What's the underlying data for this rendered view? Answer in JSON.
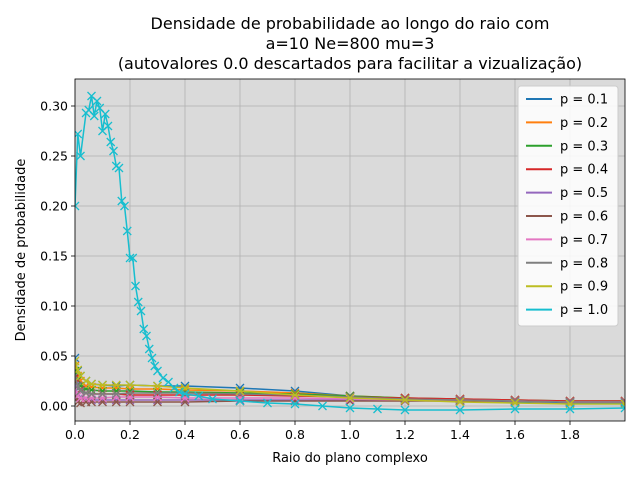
{
  "chart_data": {
    "type": "line",
    "title_lines": [
      "Densidade de probabilidade ao longo do raio com",
      "a=10 Ne=800 mu=3",
      "(autovalores 0.0 descartados para facilitar a vizualização)"
    ],
    "xlabel": "Raio do plano complexo",
    "ylabel": "Densidade de probabilidade",
    "xlim": [
      0,
      2.0
    ],
    "ylim": [
      -0.015,
      0.327
    ],
    "x_ticks": [
      0.0,
      0.2,
      0.4,
      0.6,
      0.8,
      1.0,
      1.2,
      1.4,
      1.6,
      1.8
    ],
    "x_tick_labels": [
      "0.0",
      "0.2",
      "0.4",
      "0.6",
      "0.8",
      "1.0",
      "1.2",
      "1.4",
      "1.6",
      "1.8"
    ],
    "y_ticks": [
      0.0,
      0.05,
      0.1,
      0.15,
      0.2,
      0.25,
      0.3
    ],
    "y_tick_labels": [
      "0.00",
      "0.05",
      "0.10",
      "0.15",
      "0.20",
      "0.25",
      "0.30"
    ],
    "grid": true,
    "marker": "x",
    "legend_position": "top-right",
    "series": [
      {
        "name": "p = 0.1",
        "color": "#1f77b4",
        "x": [
          0,
          0.01,
          0.02,
          0.04,
          0.06,
          0.1,
          0.15,
          0.2,
          0.3,
          0.4,
          0.6,
          0.8,
          1.0,
          1.2,
          1.4,
          1.6,
          1.8,
          2.0
        ],
        "y": [
          0.048,
          0.035,
          0.03,
          0.025,
          0.022,
          0.021,
          0.02,
          0.021,
          0.02,
          0.02,
          0.018,
          0.015,
          0.01,
          0.007,
          0.005,
          0.004,
          0.003,
          0.003
        ]
      },
      {
        "name": "p = 0.2",
        "color": "#ff7f0e",
        "x": [
          0,
          0.01,
          0.02,
          0.04,
          0.06,
          0.1,
          0.15,
          0.2,
          0.3,
          0.4,
          0.6,
          0.8,
          1.0,
          1.2,
          1.4,
          1.6,
          1.8,
          2.0
        ],
        "y": [
          0.04,
          0.03,
          0.025,
          0.02,
          0.019,
          0.018,
          0.018,
          0.017,
          0.017,
          0.016,
          0.015,
          0.013,
          0.01,
          0.008,
          0.006,
          0.005,
          0.004,
          0.004
        ]
      },
      {
        "name": "p = 0.3",
        "color": "#2ca02c",
        "x": [
          0,
          0.01,
          0.02,
          0.04,
          0.06,
          0.1,
          0.15,
          0.2,
          0.3,
          0.4,
          0.6,
          0.8,
          1.0,
          1.2,
          1.4,
          1.6,
          1.8,
          2.0
        ],
        "y": [
          0.035,
          0.026,
          0.02,
          0.017,
          0.016,
          0.015,
          0.015,
          0.015,
          0.014,
          0.014,
          0.013,
          0.012,
          0.01,
          0.008,
          0.007,
          0.006,
          0.005,
          0.005
        ]
      },
      {
        "name": "p = 0.4",
        "color": "#d62728",
        "x": [
          0,
          0.01,
          0.02,
          0.04,
          0.06,
          0.1,
          0.15,
          0.2,
          0.3,
          0.4,
          0.6,
          0.8,
          1.0,
          1.2,
          1.4,
          1.6,
          1.8,
          2.0
        ],
        "y": [
          0.028,
          0.02,
          0.016,
          0.013,
          0.012,
          0.012,
          0.012,
          0.011,
          0.011,
          0.011,
          0.011,
          0.01,
          0.009,
          0.008,
          0.007,
          0.006,
          0.005,
          0.005
        ]
      },
      {
        "name": "p = 0.5",
        "color": "#9467bd",
        "x": [
          0,
          0.01,
          0.02,
          0.04,
          0.06,
          0.1,
          0.15,
          0.2,
          0.3,
          0.4,
          0.6,
          0.8,
          1.0,
          1.2,
          1.4,
          1.6,
          1.8,
          2.0
        ],
        "y": [
          0.02,
          0.012,
          0.009,
          0.007,
          0.006,
          0.006,
          0.006,
          0.006,
          0.006,
          0.006,
          0.006,
          0.006,
          0.006,
          0.006,
          0.005,
          0.005,
          0.004,
          0.004
        ]
      },
      {
        "name": "p = 0.6",
        "color": "#8c564b",
        "x": [
          0,
          0.01,
          0.02,
          0.04,
          0.06,
          0.1,
          0.15,
          0.2,
          0.3,
          0.4,
          0.6,
          0.8,
          1.0,
          1.2,
          1.4,
          1.6,
          1.8,
          2.0
        ],
        "y": [
          0.01,
          0.004,
          0.003,
          0.004,
          0.004,
          0.004,
          0.004,
          0.004,
          0.004,
          0.004,
          0.005,
          0.005,
          0.005,
          0.005,
          0.005,
          0.005,
          0.004,
          0.004
        ]
      },
      {
        "name": "p = 0.7",
        "color": "#e377c2",
        "x": [
          0,
          0.01,
          0.02,
          0.04,
          0.06,
          0.1,
          0.15,
          0.2,
          0.3,
          0.4,
          0.6,
          0.8,
          1.0,
          1.2,
          1.4,
          1.6,
          1.8,
          2.0
        ],
        "y": [
          0.016,
          0.01,
          0.008,
          0.008,
          0.008,
          0.008,
          0.009,
          0.009,
          0.009,
          0.008,
          0.008,
          0.008,
          0.007,
          0.006,
          0.006,
          0.005,
          0.004,
          0.004
        ]
      },
      {
        "name": "p = 0.8",
        "color": "#7f7f7f",
        "x": [
          0,
          0.01,
          0.02,
          0.04,
          0.06,
          0.1,
          0.15,
          0.2,
          0.3,
          0.4,
          0.6,
          0.8,
          1.0,
          1.2,
          1.4,
          1.6,
          1.8,
          2.0
        ],
        "y": [
          0.03,
          0.02,
          0.015,
          0.013,
          0.012,
          0.012,
          0.012,
          0.013,
          0.013,
          0.013,
          0.012,
          0.011,
          0.009,
          0.007,
          0.006,
          0.005,
          0.004,
          0.004
        ]
      },
      {
        "name": "p = 0.9",
        "color": "#bcbd22",
        "x": [
          0,
          0.01,
          0.02,
          0.04,
          0.06,
          0.1,
          0.15,
          0.2,
          0.3,
          0.4,
          0.6,
          0.8,
          1.0,
          1.2,
          1.4,
          1.6,
          1.8,
          2.0
        ],
        "y": [
          0.045,
          0.036,
          0.03,
          0.025,
          0.022,
          0.021,
          0.021,
          0.021,
          0.02,
          0.018,
          0.015,
          0.011,
          0.008,
          0.006,
          0.004,
          0.003,
          0.002,
          0.002
        ]
      },
      {
        "name": "p = 1.0",
        "color": "#17becf",
        "x": [
          0,
          0.01,
          0.02,
          0.04,
          0.05,
          0.06,
          0.07,
          0.08,
          0.09,
          0.1,
          0.11,
          0.12,
          0.13,
          0.14,
          0.15,
          0.16,
          0.17,
          0.18,
          0.19,
          0.2,
          0.21,
          0.22,
          0.23,
          0.24,
          0.25,
          0.26,
          0.27,
          0.28,
          0.29,
          0.3,
          0.32,
          0.34,
          0.36,
          0.38,
          0.4,
          0.45,
          0.5,
          0.6,
          0.7,
          0.8,
          0.9,
          1.0,
          1.1,
          1.2,
          1.4,
          1.6,
          1.8,
          2.0
        ],
        "y": [
          0.2,
          0.272,
          0.25,
          0.293,
          0.296,
          0.31,
          0.29,
          0.305,
          0.298,
          0.275,
          0.292,
          0.28,
          0.264,
          0.255,
          0.24,
          0.238,
          0.205,
          0.2,
          0.175,
          0.148,
          0.148,
          0.12,
          0.104,
          0.095,
          0.077,
          0.07,
          0.057,
          0.048,
          0.04,
          0.035,
          0.028,
          0.024,
          0.018,
          0.014,
          0.012,
          0.01,
          0.007,
          0.005,
          0.003,
          0.002,
          0.0,
          -0.002,
          -0.003,
          -0.004,
          -0.004,
          -0.003,
          -0.003,
          -0.002
        ]
      }
    ]
  }
}
